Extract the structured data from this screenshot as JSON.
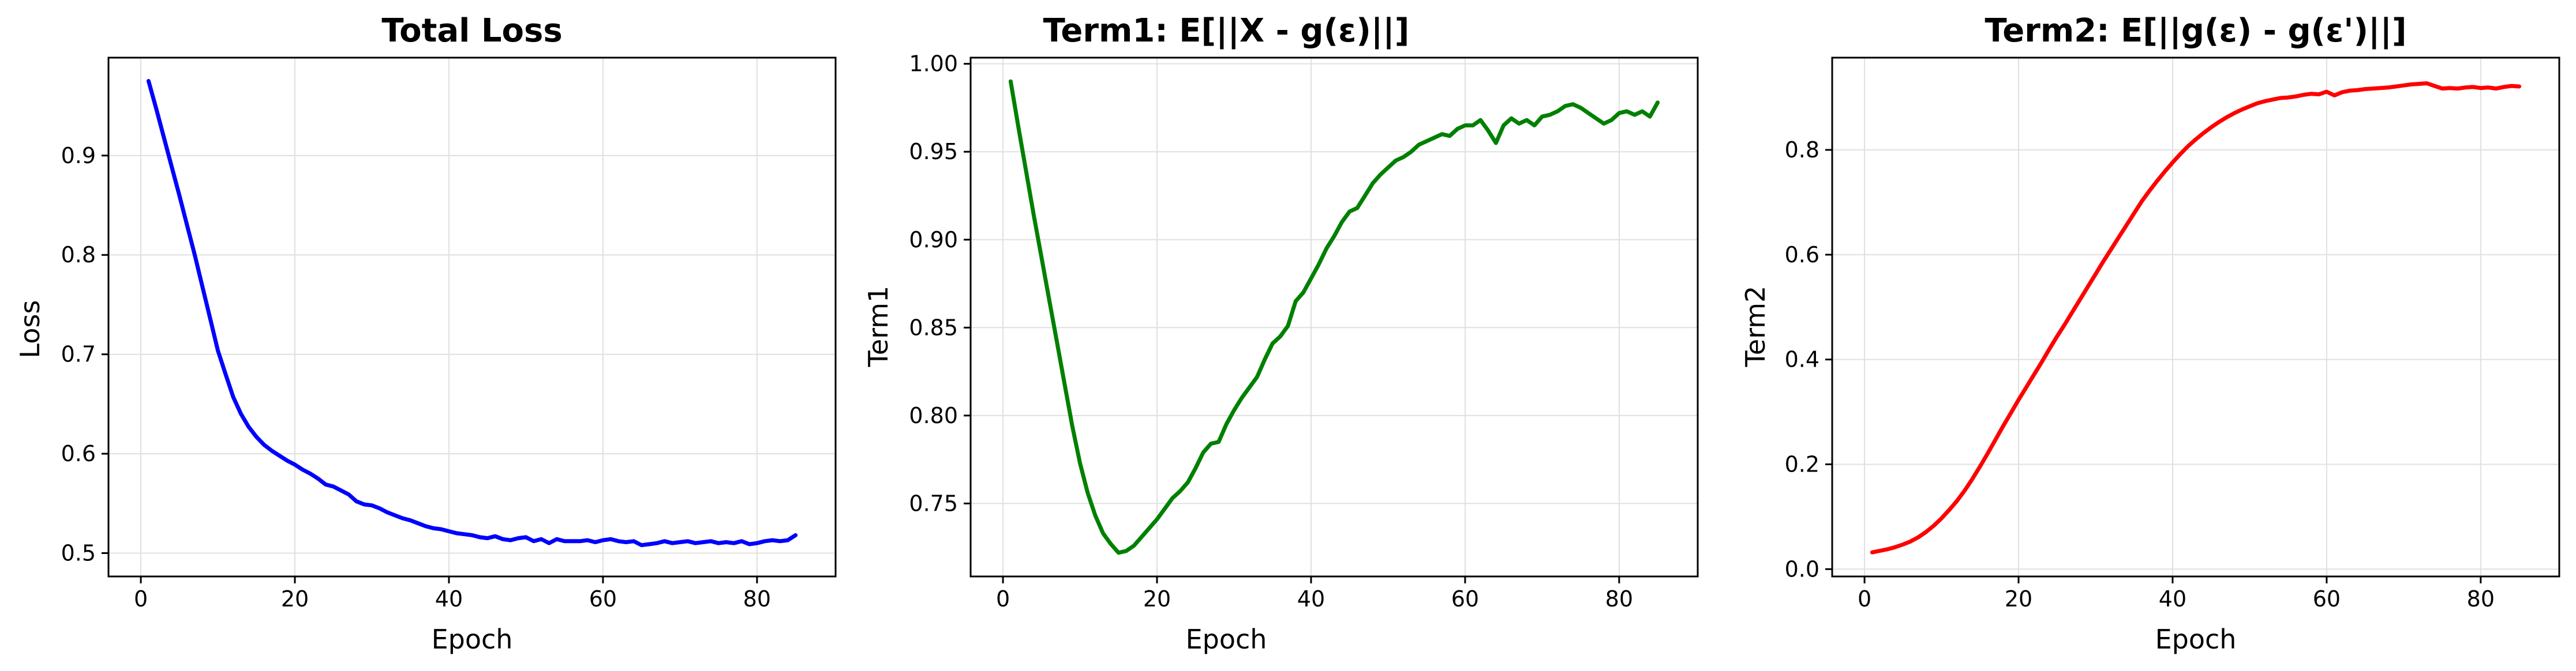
{
  "chart_data": [
    {
      "type": "line",
      "title": "Total Loss",
      "xlabel": "Epoch",
      "ylabel": "Loss",
      "xlim": [
        -4.2,
        90.2
      ],
      "ylim": [
        0.4765,
        0.9985
      ],
      "xticks": [
        0,
        20,
        40,
        60,
        80
      ],
      "yticks": [
        0.5,
        0.6,
        0.7,
        0.8,
        0.9
      ],
      "ytick_labels": [
        "0.5",
        "0.6",
        "0.7",
        "0.8",
        "0.9"
      ],
      "grid": true,
      "color": "#0000ff",
      "series": [
        {
          "x": [
            1,
            2,
            3,
            4,
            5,
            6,
            7,
            8,
            9,
            10,
            11,
            12,
            13,
            14,
            15,
            16,
            17,
            18,
            19,
            20,
            21,
            22,
            23,
            24,
            25,
            26,
            27,
            28,
            29,
            30,
            31,
            32,
            33,
            34,
            35,
            36,
            37,
            38,
            39,
            40,
            41,
            42,
            43,
            44,
            45,
            46,
            47,
            48,
            49,
            50,
            51,
            52,
            53,
            54,
            55,
            56,
            57,
            58,
            59,
            60,
            61,
            62,
            63,
            64,
            65,
            66,
            67,
            68,
            69,
            70,
            71,
            72,
            73,
            74,
            75,
            76,
            77,
            78,
            79,
            80,
            81,
            82,
            83,
            84,
            85
          ],
          "values": [
            0.975,
            0.947,
            0.918,
            0.889,
            0.86,
            0.83,
            0.8,
            0.768,
            0.736,
            0.704,
            0.68,
            0.657,
            0.64,
            0.627,
            0.617,
            0.609,
            0.603,
            0.598,
            0.593,
            0.589,
            0.584,
            0.58,
            0.575,
            0.569,
            0.567,
            0.563,
            0.559,
            0.552,
            0.549,
            0.548,
            0.545,
            0.541,
            0.538,
            0.535,
            0.533,
            0.53,
            0.527,
            0.525,
            0.524,
            0.522,
            0.52,
            0.519,
            0.518,
            0.516,
            0.515,
            0.517,
            0.514,
            0.513,
            0.515,
            0.516,
            0.512,
            0.514,
            0.51,
            0.514,
            0.512,
            0.512,
            0.512,
            0.513,
            0.511,
            0.513,
            0.514,
            0.512,
            0.511,
            0.512,
            0.508,
            0.509,
            0.51,
            0.512,
            0.51,
            0.511,
            0.512,
            0.51,
            0.511,
            0.512,
            0.51,
            0.511,
            0.51,
            0.512,
            0.509,
            0.51,
            0.512,
            0.513,
            0.512,
            0.513,
            0.518
          ]
        }
      ]
    },
    {
      "type": "line",
      "title": "Term1: E[||X - g(ε)||]",
      "xlabel": "Epoch",
      "ylabel": "Term1",
      "xlim": [
        -4.2,
        90.2
      ],
      "ylim": [
        0.7085,
        1.0035
      ],
      "xticks": [
        0,
        20,
        40,
        60,
        80
      ],
      "yticks": [
        0.75,
        0.8,
        0.85,
        0.9,
        0.95,
        1.0
      ],
      "ytick_labels": [
        "0.75",
        "0.80",
        "0.85",
        "0.90",
        "0.95",
        "1.00"
      ],
      "grid": true,
      "color": "#008000",
      "series": [
        {
          "x": [
            1,
            2,
            3,
            4,
            5,
            6,
            7,
            8,
            9,
            10,
            11,
            12,
            13,
            14,
            15,
            16,
            17,
            18,
            19,
            20,
            21,
            22,
            23,
            24,
            25,
            26,
            27,
            28,
            29,
            30,
            31,
            32,
            33,
            34,
            35,
            36,
            37,
            38,
            39,
            40,
            41,
            42,
            43,
            44,
            45,
            46,
            47,
            48,
            49,
            50,
            51,
            52,
            53,
            54,
            55,
            56,
            57,
            58,
            59,
            60,
            61,
            62,
            63,
            64,
            65,
            66,
            67,
            68,
            69,
            70,
            71,
            72,
            73,
            74,
            75,
            76,
            77,
            78,
            79,
            80,
            81,
            82,
            83,
            84,
            85
          ],
          "values": [
            0.99,
            0.964,
            0.939,
            0.914,
            0.89,
            0.866,
            0.842,
            0.818,
            0.794,
            0.773,
            0.756,
            0.743,
            0.733,
            0.727,
            0.722,
            0.723,
            0.726,
            0.731,
            0.736,
            0.741,
            0.747,
            0.753,
            0.757,
            0.762,
            0.77,
            0.779,
            0.784,
            0.785,
            0.795,
            0.803,
            0.81,
            0.816,
            0.822,
            0.832,
            0.841,
            0.845,
            0.851,
            0.865,
            0.87,
            0.878,
            0.886,
            0.895,
            0.902,
            0.91,
            0.916,
            0.918,
            0.925,
            0.932,
            0.937,
            0.941,
            0.945,
            0.947,
            0.95,
            0.954,
            0.956,
            0.958,
            0.96,
            0.959,
            0.963,
            0.965,
            0.965,
            0.968,
            0.962,
            0.955,
            0.965,
            0.969,
            0.966,
            0.968,
            0.965,
            0.97,
            0.971,
            0.973,
            0.976,
            0.977,
            0.975,
            0.972,
            0.969,
            0.966,
            0.968,
            0.972,
            0.973,
            0.971,
            0.973,
            0.97,
            0.978
          ]
        }
      ]
    },
    {
      "type": "line",
      "title": "Term2: E[||g(ε) - g(ε')||]",
      "xlabel": "Epoch",
      "ylabel": "Term2",
      "xlim": [
        -4.2,
        90.2
      ],
      "ylim": [
        -0.014,
        0.976
      ],
      "xticks": [
        0,
        20,
        40,
        60,
        80
      ],
      "yticks": [
        0.0,
        0.2,
        0.4,
        0.6,
        0.8
      ],
      "ytick_labels": [
        "0.0",
        "0.2",
        "0.4",
        "0.6",
        "0.8"
      ],
      "grid": true,
      "color": "#ff0000",
      "series": [
        {
          "x": [
            1,
            2,
            3,
            4,
            5,
            6,
            7,
            8,
            9,
            10,
            11,
            12,
            13,
            14,
            15,
            16,
            17,
            18,
            19,
            20,
            21,
            22,
            23,
            24,
            25,
            26,
            27,
            28,
            29,
            30,
            31,
            32,
            33,
            34,
            35,
            36,
            37,
            38,
            39,
            40,
            41,
            42,
            43,
            44,
            45,
            46,
            47,
            48,
            49,
            50,
            51,
            52,
            53,
            54,
            55,
            56,
            57,
            58,
            59,
            60,
            61,
            62,
            63,
            64,
            65,
            66,
            67,
            68,
            69,
            70,
            71,
            72,
            73,
            74,
            75,
            76,
            77,
            78,
            79,
            80,
            81,
            82,
            83,
            84,
            85
          ],
          "values": [
            0.032,
            0.035,
            0.038,
            0.042,
            0.047,
            0.053,
            0.061,
            0.071,
            0.083,
            0.097,
            0.113,
            0.13,
            0.15,
            0.172,
            0.196,
            0.221,
            0.247,
            0.273,
            0.298,
            0.323,
            0.347,
            0.371,
            0.395,
            0.42,
            0.444,
            0.467,
            0.491,
            0.515,
            0.539,
            0.563,
            0.587,
            0.61,
            0.633,
            0.656,
            0.679,
            0.702,
            0.722,
            0.741,
            0.759,
            0.776,
            0.792,
            0.807,
            0.82,
            0.832,
            0.843,
            0.853,
            0.862,
            0.87,
            0.877,
            0.883,
            0.889,
            0.893,
            0.896,
            0.899,
            0.9,
            0.902,
            0.905,
            0.907,
            0.906,
            0.911,
            0.904,
            0.91,
            0.913,
            0.914,
            0.916,
            0.917,
            0.918,
            0.919,
            0.921,
            0.923,
            0.925,
            0.926,
            0.927,
            0.922,
            0.917,
            0.918,
            0.917,
            0.919,
            0.92,
            0.918,
            0.919,
            0.917,
            0.92,
            0.922,
            0.921
          ]
        }
      ]
    }
  ]
}
